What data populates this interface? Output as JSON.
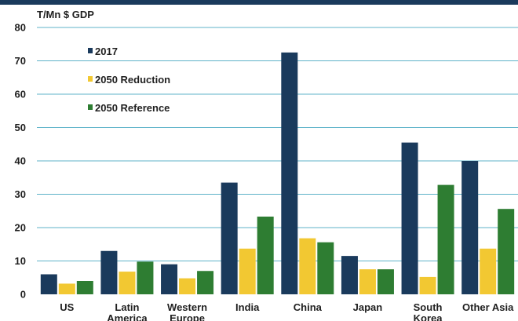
{
  "chart_data": {
    "type": "bar",
    "ylabel": "T/Mn $ GDP",
    "ylim": [
      0,
      80
    ],
    "yticks": [
      0,
      10,
      20,
      30,
      40,
      50,
      60,
      70,
      80
    ],
    "grid": true,
    "legend_position": "top-left",
    "categories": [
      [
        "US"
      ],
      [
        "Latin",
        "America"
      ],
      [
        "Western",
        "Europe"
      ],
      [
        "India"
      ],
      [
        "China"
      ],
      [
        "Japan"
      ],
      [
        "South",
        "Korea"
      ],
      [
        "Other Asia"
      ]
    ],
    "series": [
      {
        "name": "2017",
        "color": "#1a3a5c",
        "values": [
          6,
          13,
          9,
          33.5,
          72.5,
          11.5,
          45.5,
          40
        ]
      },
      {
        "name": "2050 Reduction",
        "color": "#f2c832",
        "values": [
          3.2,
          6.8,
          4.8,
          13.7,
          16.8,
          7.5,
          5.2,
          13.7
        ]
      },
      {
        "name": "2050 Reference",
        "color": "#2e7d32",
        "values": [
          4,
          9.8,
          7,
          23.3,
          15.6,
          7.5,
          32.8,
          25.6
        ]
      }
    ]
  }
}
